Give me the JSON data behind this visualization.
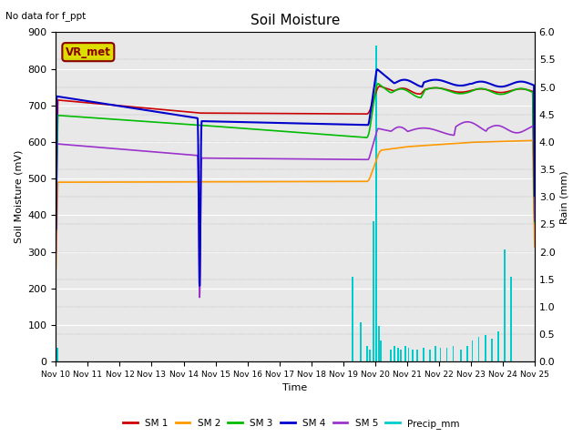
{
  "title": "Soil Moisture",
  "subtitle": "No data for f_ppt",
  "xlabel": "Time",
  "ylabel_left": "Soil Moisture (mV)",
  "ylabel_right": "Rain (mm)",
  "ylim_left": [
    0,
    900
  ],
  "ylim_right": [
    0,
    6.0
  ],
  "background_color": "#e8e8e8",
  "xtick_labels": [
    "Nov 10",
    "Nov 11",
    "Nov 12",
    "Nov 13",
    "Nov 14",
    "Nov 15",
    "Nov 16",
    "Nov 17",
    "Nov 18",
    "Nov 19",
    "Nov 20",
    "Nov 21",
    "Nov 22",
    "Nov 23",
    "Nov 24",
    "Nov 25"
  ],
  "sm1_color": "#cc0000",
  "sm2_color": "#ff9900",
  "sm3_color": "#00bb00",
  "sm4_color": "#0000cc",
  "sm5_color": "#9933cc",
  "precip_color": "#00cccc",
  "vr_met_box_color": "#dddd00",
  "vr_met_text_color": "#880000",
  "precip_bars_t": [
    0.05,
    9.3,
    9.55,
    9.75,
    9.85,
    9.95,
    10.05,
    10.12,
    10.18,
    10.5,
    10.62,
    10.72,
    10.82,
    10.95,
    11.05,
    11.18,
    11.32,
    11.52,
    11.72,
    11.88,
    12.05,
    12.25,
    12.45,
    12.7,
    12.88,
    13.05,
    13.25,
    13.45,
    13.65,
    13.85,
    14.05,
    14.25
  ],
  "precip_bars_v": [
    0.25,
    1.55,
    0.72,
    0.28,
    0.22,
    2.55,
    5.75,
    0.65,
    0.38,
    0.22,
    0.28,
    0.25,
    0.22,
    0.28,
    0.25,
    0.22,
    0.22,
    0.25,
    0.22,
    0.28,
    0.25,
    0.25,
    0.28,
    0.22,
    0.28,
    0.38,
    0.45,
    0.48,
    0.42,
    0.55,
    2.05,
    1.55
  ]
}
